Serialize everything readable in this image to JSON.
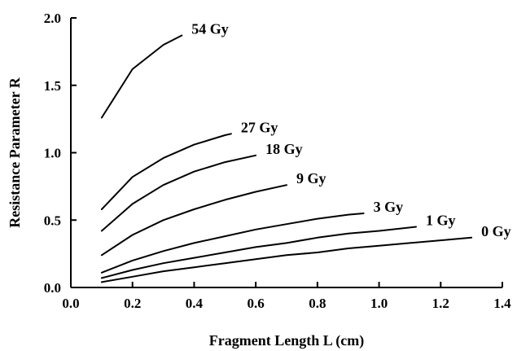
{
  "chart_data": {
    "type": "line",
    "title": "",
    "xlabel": "Fragment Length L (cm)",
    "ylabel": "Resistance Parameter R",
    "xlim": [
      0.0,
      1.4
    ],
    "ylim": [
      0.0,
      2.0
    ],
    "x_ticks": [
      "0.0",
      "0.2",
      "0.4",
      "0.6",
      "0.8",
      "1.0",
      "1.2",
      "1.4"
    ],
    "y_ticks": [
      "0.0",
      "0.5",
      "1.0",
      "1.5",
      "2.0"
    ],
    "grid": false,
    "legend": "none",
    "series": [
      {
        "name": "54 Gy",
        "x": [
          0.1,
          0.2,
          0.3,
          0.36
        ],
        "y": [
          1.26,
          1.62,
          1.8,
          1.87
        ]
      },
      {
        "name": "27 Gy",
        "x": [
          0.1,
          0.2,
          0.3,
          0.4,
          0.5,
          0.52
        ],
        "y": [
          0.58,
          0.82,
          0.96,
          1.06,
          1.13,
          1.14
        ]
      },
      {
        "name": "18 Gy",
        "x": [
          0.1,
          0.2,
          0.3,
          0.4,
          0.5,
          0.6
        ],
        "y": [
          0.42,
          0.62,
          0.76,
          0.86,
          0.93,
          0.98
        ]
      },
      {
        "name": "9 Gy",
        "x": [
          0.1,
          0.2,
          0.3,
          0.4,
          0.5,
          0.6,
          0.7
        ],
        "y": [
          0.24,
          0.39,
          0.5,
          0.58,
          0.65,
          0.71,
          0.76
        ]
      },
      {
        "name": "3 Gy",
        "x": [
          0.1,
          0.2,
          0.3,
          0.4,
          0.5,
          0.6,
          0.7,
          0.8,
          0.9,
          0.95
        ],
        "y": [
          0.11,
          0.2,
          0.27,
          0.33,
          0.38,
          0.43,
          0.47,
          0.51,
          0.54,
          0.55
        ]
      },
      {
        "name": "1 Gy",
        "x": [
          0.1,
          0.2,
          0.3,
          0.4,
          0.5,
          0.6,
          0.7,
          0.8,
          0.9,
          1.0,
          1.12
        ],
        "y": [
          0.07,
          0.13,
          0.18,
          0.22,
          0.26,
          0.3,
          0.33,
          0.37,
          0.4,
          0.42,
          0.45
        ]
      },
      {
        "name": "0 Gy",
        "x": [
          0.1,
          0.2,
          0.3,
          0.4,
          0.5,
          0.6,
          0.7,
          0.8,
          0.9,
          1.0,
          1.1,
          1.2,
          1.3
        ],
        "y": [
          0.04,
          0.08,
          0.12,
          0.15,
          0.18,
          0.21,
          0.24,
          0.26,
          0.29,
          0.31,
          0.33,
          0.35,
          0.37
        ]
      }
    ]
  }
}
